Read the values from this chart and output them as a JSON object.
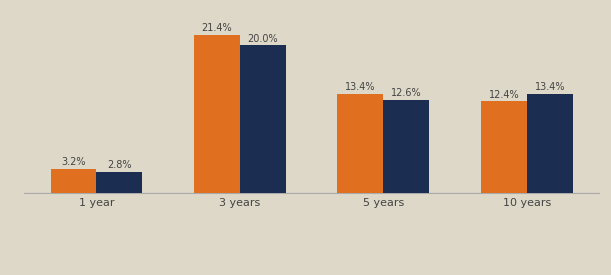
{
  "categories": [
    "1 year",
    "3 years",
    "5 years",
    "10 years"
  ],
  "elss_values": [
    3.2,
    21.4,
    13.4,
    12.4
  ],
  "diversified_values": [
    2.8,
    20.0,
    12.6,
    13.4
  ],
  "elss_color": "#E07020",
  "diversified_color": "#1C2D52",
  "background_color": "#DDD8C8",
  "bar_width": 0.32,
  "tick_fontsize": 8,
  "legend_fontsize": 8,
  "value_fontsize": 7,
  "ylim": [
    0,
    25
  ],
  "value_color": "#444444",
  "spine_color": "#AAAAAA"
}
